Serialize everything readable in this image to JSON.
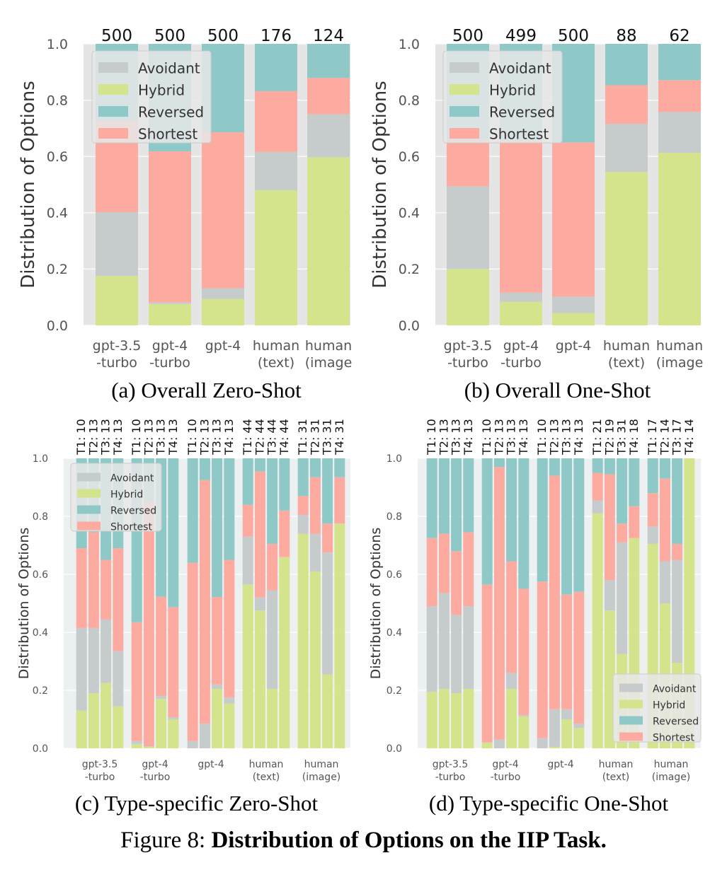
{
  "colors": {
    "Avoidant": "#c6cbcc",
    "Hybrid": "#d4e48c",
    "Reversed": "#8ec9c8",
    "Shortest": "#fdaba0",
    "panel_bg_top": "#e5e5e5",
    "panel_bg_bottom": "#edf0f1"
  },
  "figure": {
    "label": "Figure 8: ",
    "title": "Distribution of Options on the IIP Task."
  },
  "chart_data": [
    {
      "type": "bar",
      "stacked": true,
      "subtitle": "(a) Overall Zero-Shot",
      "ylabel": "Distribution of Options",
      "ylim": [
        0,
        1
      ],
      "yticks": [
        "0.0",
        "0.2",
        "0.4",
        "0.6",
        "0.8",
        "1.0"
      ],
      "legend_position": "top-left",
      "legend": [
        "Avoidant",
        "Hybrid",
        "Reversed",
        "Shortest"
      ],
      "categories": [
        [
          "gpt-3.5",
          "-turbo"
        ],
        [
          "gpt-4",
          "-turbo"
        ],
        [
          "gpt-4"
        ],
        [
          "human",
          "(text)"
        ],
        [
          "human",
          "(image"
        ]
      ],
      "counts": [
        "500",
        "500",
        "500",
        "176",
        "124"
      ],
      "series": [
        {
          "name": "Hybrid",
          "values": [
            0.176,
            0.076,
            0.094,
            0.48,
            0.597
          ]
        },
        {
          "name": "Avoidant",
          "values": [
            0.226,
            0.006,
            0.038,
            0.136,
            0.153
          ]
        },
        {
          "name": "Shortest",
          "values": [
            0.324,
            0.536,
            0.554,
            0.216,
            0.129
          ]
        },
        {
          "name": "Reversed",
          "values": [
            0.274,
            0.382,
            0.314,
            0.168,
            0.121
          ]
        }
      ]
    },
    {
      "type": "bar",
      "stacked": true,
      "subtitle": "(b) Overall One-Shot",
      "ylabel": "Distribution of Options",
      "ylim": [
        0,
        1
      ],
      "yticks": [
        "0.0",
        "0.2",
        "0.4",
        "0.6",
        "0.8",
        "1.0"
      ],
      "legend_position": "top-left",
      "legend": [
        "Avoidant",
        "Hybrid",
        "Reversed",
        "Shortest"
      ],
      "categories": [
        [
          "gpt-3.5",
          "-turbo"
        ],
        [
          "gpt-4",
          "-turbo"
        ],
        [
          "gpt-4"
        ],
        [
          "human",
          "(text)"
        ],
        [
          "human",
          "(image"
        ]
      ],
      "counts": [
        "500",
        "499",
        "500",
        "88",
        "62"
      ],
      "series": [
        {
          "name": "Hybrid",
          "values": [
            0.2,
            0.084,
            0.044,
            0.545,
            0.613
          ]
        },
        {
          "name": "Avoidant",
          "values": [
            0.294,
            0.032,
            0.058,
            0.171,
            0.145
          ]
        },
        {
          "name": "Shortest",
          "values": [
            0.166,
            0.539,
            0.548,
            0.137,
            0.113
          ]
        },
        {
          "name": "Reversed",
          "values": [
            0.34,
            0.345,
            0.35,
            0.147,
            0.129
          ]
        }
      ]
    },
    {
      "type": "bar",
      "stacked": true,
      "subtitle": "(c) Type-specific Zero-Shot",
      "ylabel": "Distribution of Options",
      "ylim": [
        0,
        1
      ],
      "yticks": [
        "0.0",
        "0.2",
        "0.4",
        "0.6",
        "0.8",
        "1.0"
      ],
      "legend_position": "top-left",
      "legend": [
        "Avoidant",
        "Hybrid",
        "Reversed",
        "Shortest"
      ],
      "categories": [
        [
          "gpt-3.5",
          "-turbo"
        ],
        [
          "gpt-4",
          "-turbo"
        ],
        [
          "gpt-4"
        ],
        [
          "human",
          "(text)"
        ],
        [
          "human",
          "(image)"
        ]
      ],
      "type_labels": [
        [
          "T1: 10",
          "T2: 13",
          "T3: 13",
          "T4: 13"
        ],
        [
          "T1: 10",
          "T2: 13",
          "T3: 13",
          "T4: 13"
        ],
        [
          "T1: 10",
          "T2: 13",
          "T3: 13",
          "T4: 13"
        ],
        [
          "T1: 44",
          "T2: 44",
          "T3: 44",
          "T4: 44"
        ],
        [
          "T1: 31",
          "T2: 31",
          "T3: 31",
          "T4: 31"
        ]
      ],
      "groups": [
        {
          "Hybrid": [
            0.13,
            0.19,
            0.225,
            0.145
          ],
          "Avoidant": [
            0.285,
            0.225,
            0.22,
            0.19
          ],
          "Shortest": [
            0.275,
            0.33,
            0.205,
            0.355
          ],
          "Reversed": [
            0.31,
            0.255,
            0.35,
            0.31
          ]
        },
        {
          "Hybrid": [
            0.015,
            0.005,
            0.17,
            0.1
          ],
          "Avoidant": [
            0.01,
            0.002,
            0.01,
            0.007
          ],
          "Shortest": [
            0.41,
            0.843,
            0.343,
            0.38
          ],
          "Reversed": [
            0.565,
            0.15,
            0.477,
            0.513
          ]
        },
        {
          "Hybrid": [
            0.0,
            0.0,
            0.205,
            0.155
          ],
          "Avoidant": [
            0.025,
            0.085,
            0.015,
            0.02
          ],
          "Shortest": [
            0.615,
            0.84,
            0.302,
            0.475
          ],
          "Reversed": [
            0.36,
            0.075,
            0.478,
            0.35
          ]
        },
        {
          "Hybrid": [
            0.565,
            0.475,
            0.205,
            0.66
          ],
          "Avoidant": [
            0.165,
            0.045,
            0.34,
            0.0
          ],
          "Shortest": [
            0.11,
            0.435,
            0.16,
            0.16
          ],
          "Reversed": [
            0.16,
            0.045,
            0.295,
            0.18
          ]
        },
        {
          "Hybrid": [
            0.74,
            0.61,
            0.255,
            0.775
          ],
          "Avoidant": [
            0.065,
            0.13,
            0.42,
            0.0
          ],
          "Shortest": [
            0.065,
            0.195,
            0.1,
            0.16
          ],
          "Reversed": [
            0.13,
            0.065,
            0.225,
            0.065
          ]
        }
      ]
    },
    {
      "type": "bar",
      "stacked": true,
      "subtitle": "(d) Type-specific One-Shot",
      "ylabel": "Distribution of Options",
      "ylim": [
        0,
        1
      ],
      "yticks": [
        "0.0",
        "0.2",
        "0.4",
        "0.6",
        "0.8",
        "1.0"
      ],
      "legend_position": "bottom-right",
      "legend": [
        "Avoidant",
        "Hybrid",
        "Reversed",
        "Shortest"
      ],
      "categories": [
        [
          "gpt-3.5",
          "-turbo"
        ],
        [
          "gpt-4",
          "-turbo"
        ],
        [
          "gpt-4"
        ],
        [
          "human",
          "(text)"
        ],
        [
          "human",
          "(image)"
        ]
      ],
      "type_labels": [
        [
          "T1: 10",
          "T2: 13",
          "T3: 13",
          "T4: 13"
        ],
        [
          "T1: 10",
          "T2: 13",
          "T3: 13",
          "T4: 13"
        ],
        [
          "T1: 10",
          "T2: 13",
          "T3: 13",
          "T4: 13"
        ],
        [
          "T1: 21",
          "T2: 19",
          "T3: 31",
          "T4: 18"
        ],
        [
          "T1: 17",
          "T2: 14",
          "T3: 17",
          "T4: 14"
        ]
      ],
      "groups": [
        {
          "Hybrid": [
            0.195,
            0.205,
            0.19,
            0.205
          ],
          "Avoidant": [
            0.295,
            0.33,
            0.27,
            0.285
          ],
          "Shortest": [
            0.235,
            0.205,
            0.22,
            0.255
          ],
          "Reversed": [
            0.275,
            0.26,
            0.32,
            0.255
          ]
        },
        {
          "Hybrid": [
            0.02,
            0.0,
            0.205,
            0.11
          ],
          "Avoidant": [
            0.0,
            0.03,
            0.055,
            0.005
          ],
          "Shortest": [
            0.545,
            0.94,
            0.385,
            0.435
          ],
          "Reversed": [
            0.435,
            0.03,
            0.355,
            0.45
          ]
        },
        {
          "Hybrid": [
            0.0,
            0.005,
            0.1,
            0.07
          ],
          "Avoidant": [
            0.035,
            0.13,
            0.035,
            0.015
          ],
          "Shortest": [
            0.54,
            0.805,
            0.395,
            0.455
          ],
          "Reversed": [
            0.425,
            0.06,
            0.47,
            0.46
          ]
        },
        {
          "Hybrid": [
            0.81,
            0.475,
            0.325,
            0.725
          ],
          "Avoidant": [
            0.045,
            0.105,
            0.385,
            0.0
          ],
          "Shortest": [
            0.095,
            0.365,
            0.065,
            0.11
          ],
          "Reversed": [
            0.05,
            0.055,
            0.225,
            0.165
          ]
        },
        {
          "Hybrid": [
            0.705,
            0.5,
            0.295,
            1.0
          ],
          "Avoidant": [
            0.06,
            0.145,
            0.355,
            0.0
          ],
          "Shortest": [
            0.115,
            0.285,
            0.055,
            0.0
          ],
          "Reversed": [
            0.12,
            0.07,
            0.295,
            0.0
          ]
        }
      ]
    }
  ]
}
